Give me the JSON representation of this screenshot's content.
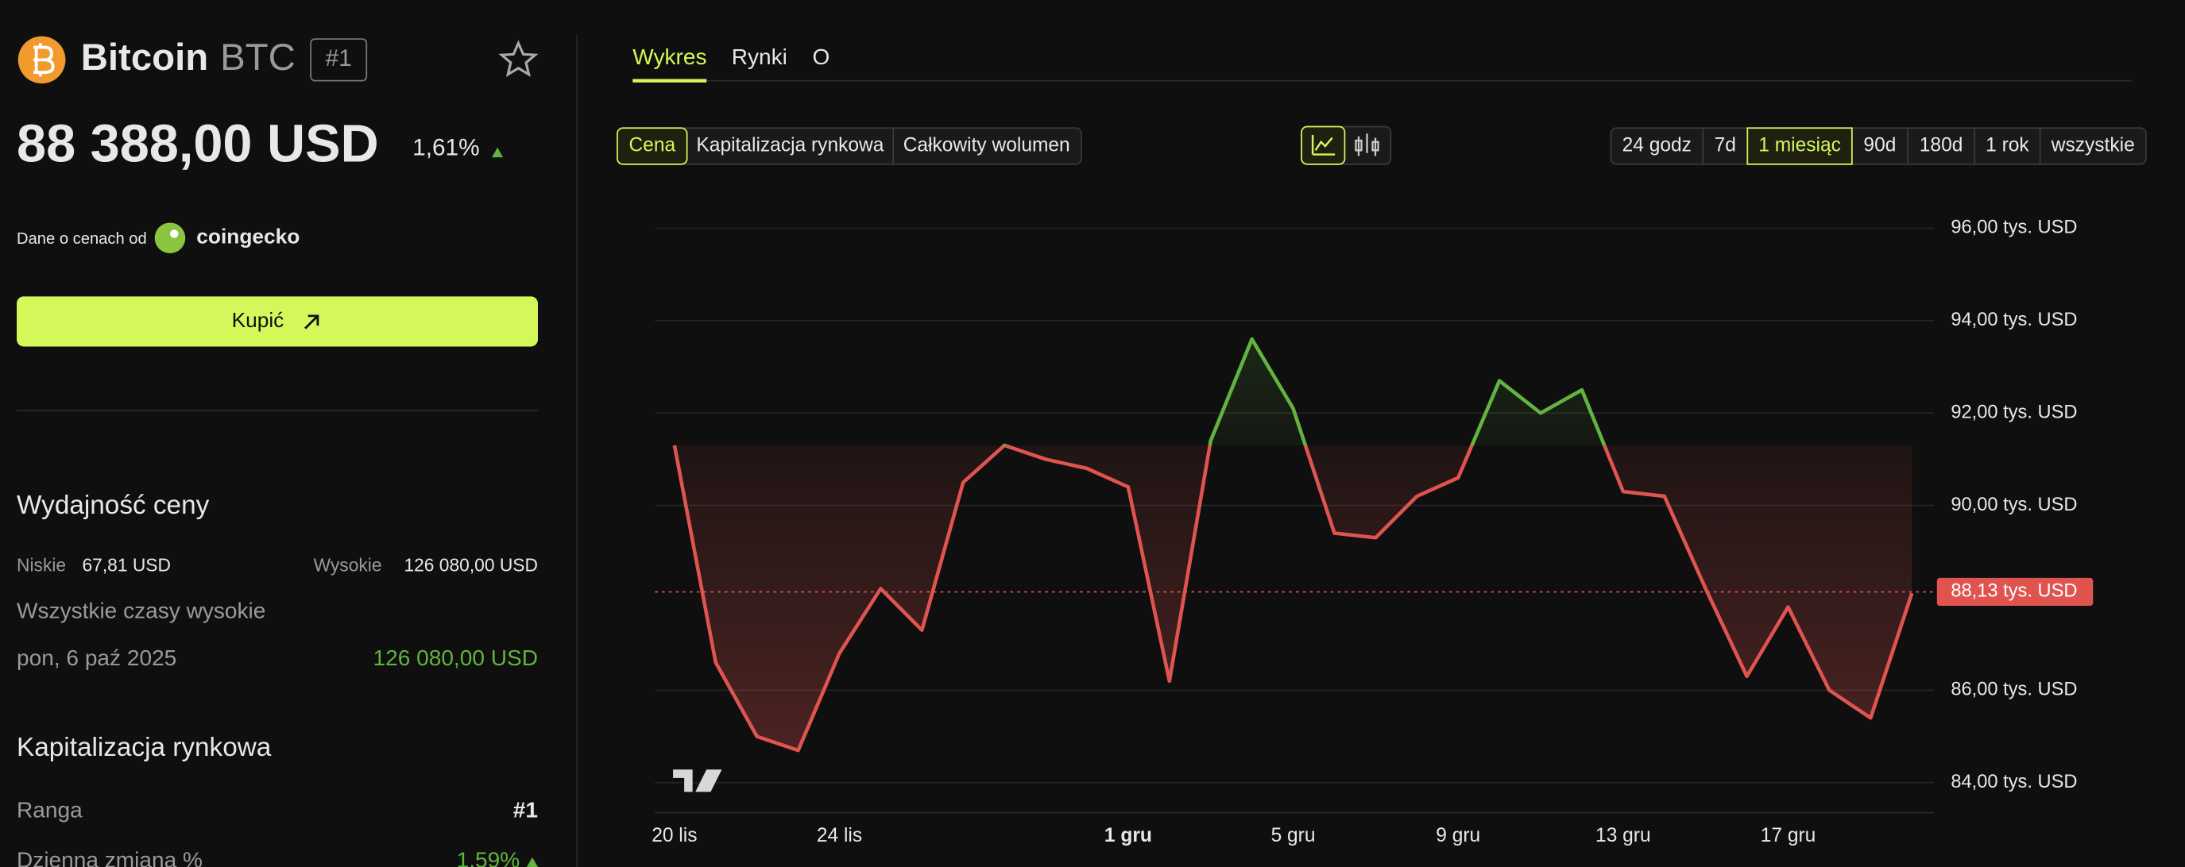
{
  "sidebar": {
    "name": "Bitcoin",
    "symbol": "BTC",
    "rank_badge": "#1",
    "price": "88 388,00 USD",
    "change": "1,61%",
    "source_label": "Dane o cenach od",
    "source": "coingecko",
    "buy": "Kupić",
    "performance_title": "Wydajność ceny",
    "low_label": "Niskie",
    "low": "67,81 USD",
    "high_label": "Wysokie",
    "high": "126 080,00 USD",
    "ath_label": "Wszystkie czasy wysokie",
    "ath_date": "pon, 6 paź 2025",
    "ath": "126 080,00 USD",
    "market_cap_title": "Kapitalizacja rynkowa",
    "rank_label": "Ranga",
    "rank": "#1",
    "daily_label": "Dzienna zmiana %",
    "daily": "1,59%"
  },
  "tabs": [
    "Wykres",
    "Rynki",
    "O"
  ],
  "metrics": [
    "Cena",
    "Kapitalizacja rynkowa",
    "Całkowity wolumen"
  ],
  "ranges": [
    "24 godz",
    "7d",
    "1 miesiąc",
    "90d",
    "180d",
    "1 rok",
    "wszystkie"
  ],
  "chart_data": {
    "type": "line",
    "categories": [
      "20 lis",
      null,
      null,
      null,
      "24 lis",
      null,
      null,
      null,
      null,
      null,
      null,
      "1 gru",
      null,
      null,
      null,
      "5 gru",
      null,
      null,
      null,
      "9 gru",
      null,
      null,
      null,
      "13 gru",
      null,
      null,
      null,
      "17 gru",
      null,
      null,
      null
    ],
    "series": [
      {
        "name": "BTC",
        "up_color": "#62b33f",
        "down_color": "#e05450",
        "values": [
          91.3,
          86.6,
          85.0,
          84.7,
          86.8,
          88.2,
          87.3,
          90.5,
          91.3,
          91.0,
          90.8,
          90.4,
          86.2,
          91.4,
          93.6,
          92.1,
          89.4,
          89.3,
          90.2,
          90.6,
          92.7,
          92.0,
          92.5,
          90.3,
          90.2,
          88.2,
          86.3,
          87.8,
          86.0,
          85.4,
          88.1
        ]
      }
    ],
    "ylim": [
      83.6,
      96.1
    ],
    "yticks": [
      {
        "value": 96,
        "label": "96,00 tys. USD"
      },
      {
        "value": 94,
        "label": "94,00 tys. USD"
      },
      {
        "value": 92,
        "label": "92,00 tys. USD"
      },
      {
        "value": 90,
        "label": "90,00 tys. USD"
      },
      {
        "value": 86,
        "label": "86,00 tys. USD"
      },
      {
        "value": 84,
        "label": "84,00 tys. USD"
      }
    ],
    "current": {
      "value": 88.13,
      "label": "88,13 tys. USD"
    },
    "grid": true
  }
}
